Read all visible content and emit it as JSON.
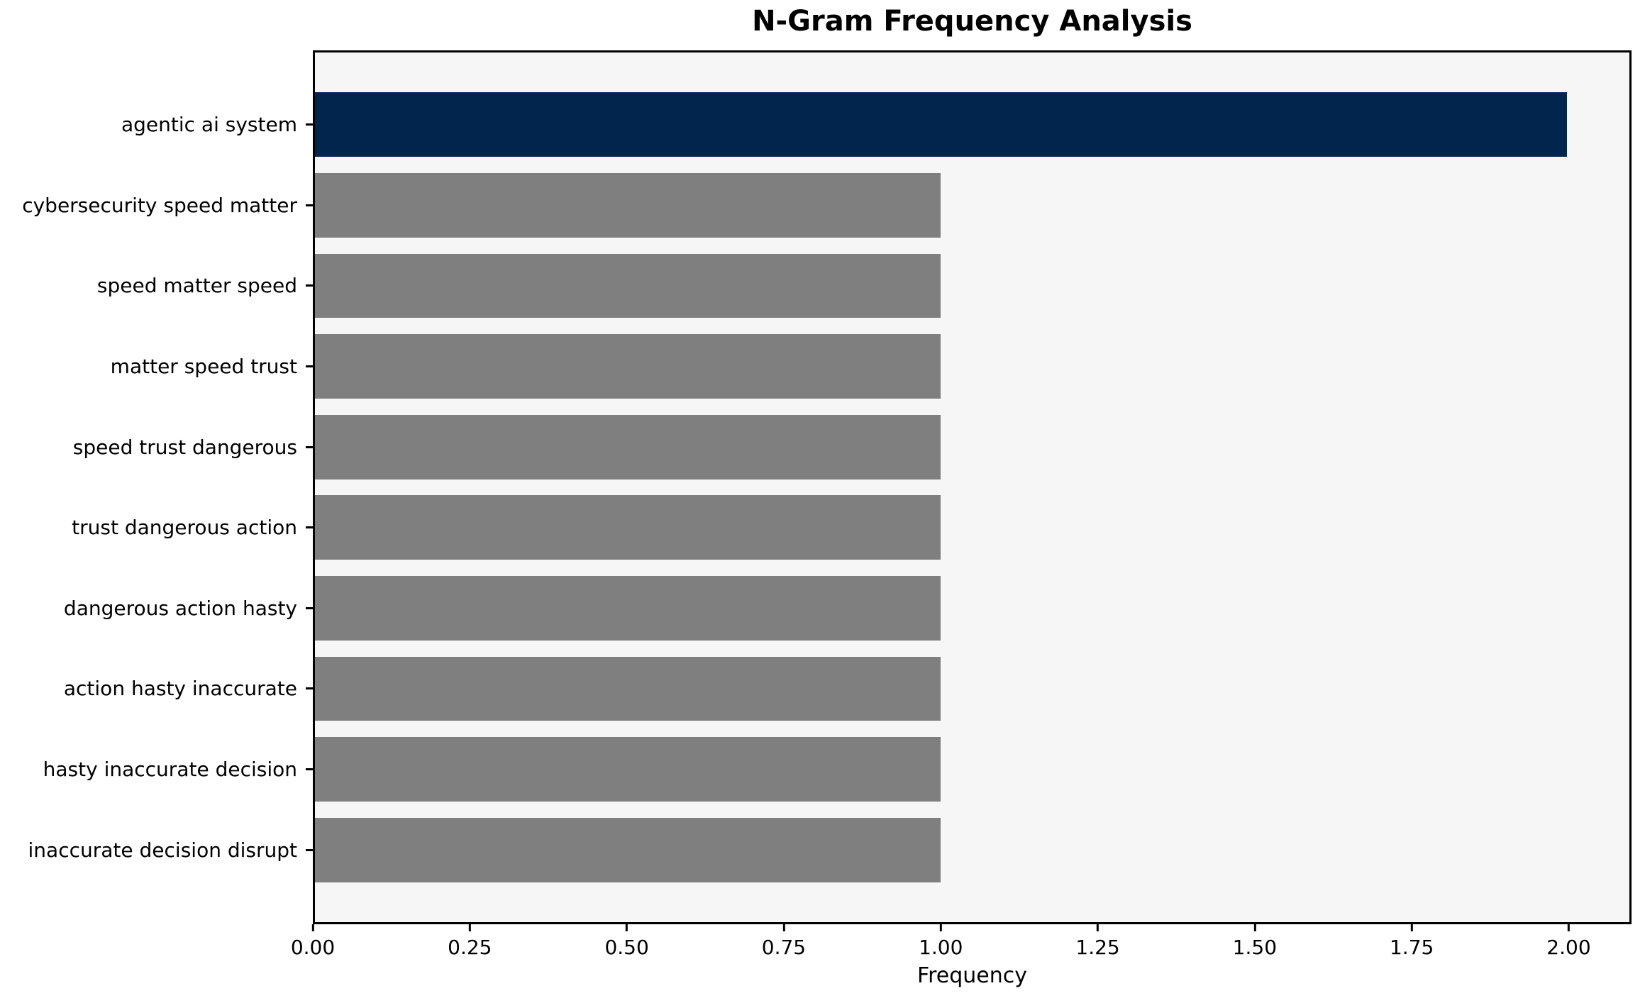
{
  "title": "N-Gram Frequency Analysis",
  "chart_data": {
    "type": "bar",
    "orientation": "horizontal",
    "title": "N-Gram Frequency Analysis",
    "xlabel": "Frequency",
    "ylabel": "",
    "grid": false,
    "legend": null,
    "xlim": [
      0,
      2.1
    ],
    "categories": [
      "agentic ai system",
      "cybersecurity speed matter",
      "speed matter speed",
      "matter speed trust",
      "speed trust dangerous",
      "trust dangerous action",
      "dangerous action hasty",
      "action hasty inaccurate",
      "hasty inaccurate decision",
      "inaccurate decision disrupt"
    ],
    "values": [
      2,
      1,
      1,
      1,
      1,
      1,
      1,
      1,
      1,
      1
    ],
    "bar_colors": [
      "#02254e",
      "#7f7f7f",
      "#7f7f7f",
      "#7f7f7f",
      "#7f7f7f",
      "#7f7f7f",
      "#7f7f7f",
      "#7f7f7f",
      "#7f7f7f",
      "#7f7f7f"
    ],
    "xticks": {
      "values": [
        0,
        0.25,
        0.5,
        0.75,
        1.0,
        1.25,
        1.5,
        1.75,
        2.0
      ],
      "labels": [
        "0.00",
        "0.25",
        "0.50",
        "0.75",
        "1.00",
        "1.25",
        "1.50",
        "1.75",
        "2.00"
      ]
    },
    "colors": {
      "highlight_bar": "#02254e",
      "default_bar": "#7f7f7f",
      "plot_background": "#f6f6f6",
      "figure_background": "#ffffff",
      "spine": "#000000",
      "text": "#000000"
    }
  }
}
